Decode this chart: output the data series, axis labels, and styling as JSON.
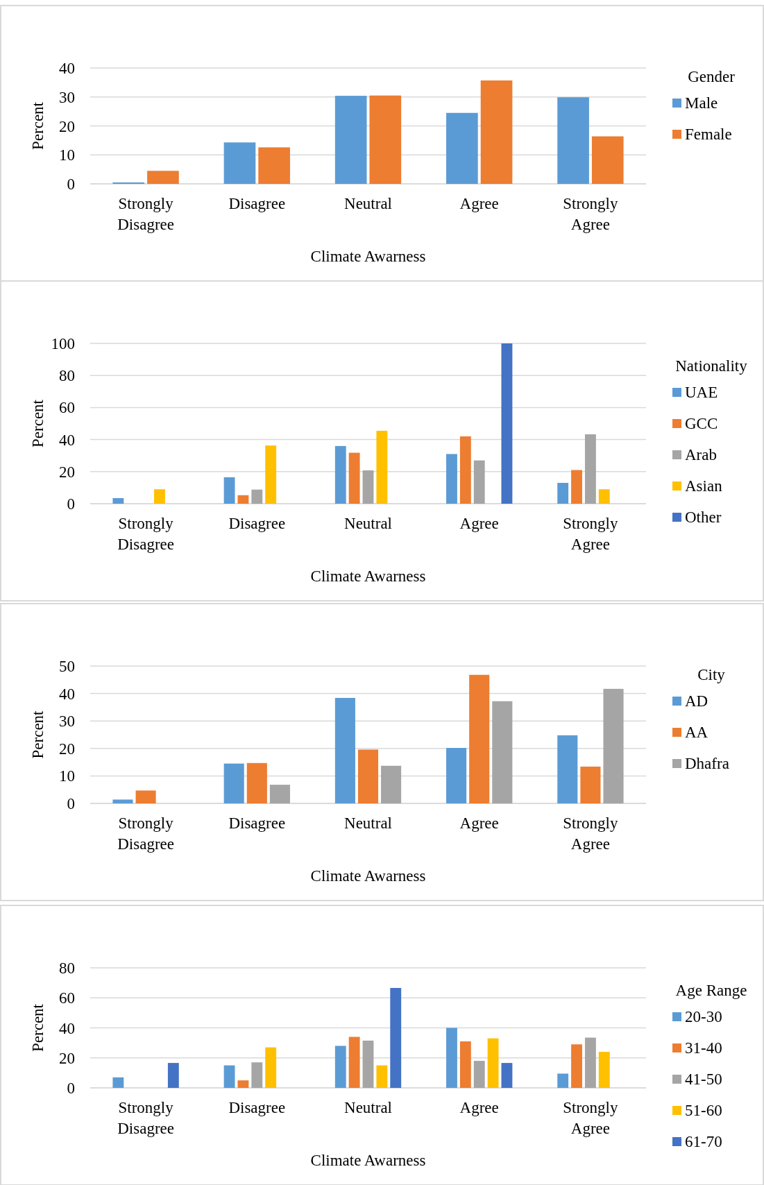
{
  "chart_data": [
    {
      "type": "bar",
      "xlabel": "Climate Awarness",
      "ylabel": "Percent",
      "legend_title": "Gender",
      "categories": [
        "Strongly Disagree",
        "Disagree",
        "Neutral",
        "Agree",
        "Strongly Agree"
      ],
      "ylim": [
        0,
        40
      ],
      "yticks": [
        0,
        10,
        20,
        30,
        40
      ],
      "grid": "y",
      "legend": "right",
      "series": [
        {
          "name": "Male",
          "color": "#5b9bd5",
          "values": [
            0.5,
            14.3,
            30.4,
            24.5,
            29.9
          ]
        },
        {
          "name": "Female",
          "color": "#ed7d31",
          "values": [
            4.5,
            12.6,
            30.5,
            35.7,
            16.4
          ]
        }
      ]
    },
    {
      "type": "bar",
      "xlabel": "Climate Awarness",
      "ylabel": "Percent",
      "legend_title": "Nationality",
      "categories": [
        "Strongly Disagree",
        "Disagree",
        "Neutral",
        "Agree",
        "Strongly Agree"
      ],
      "ylim": [
        0,
        100
      ],
      "yticks": [
        0,
        20,
        40,
        60,
        80,
        100
      ],
      "grid": "y",
      "legend": "right",
      "series": [
        {
          "name": "UAE",
          "color": "#5b9bd5",
          "values": [
            3.5,
            16.5,
            36,
            31,
            13
          ]
        },
        {
          "name": "GCC",
          "color": "#ed7d31",
          "values": [
            0,
            5.3,
            31.8,
            42,
            21
          ]
        },
        {
          "name": "Arab",
          "color": "#a5a5a5",
          "values": [
            0,
            8.8,
            20.8,
            27,
            43.3
          ]
        },
        {
          "name": "Asian",
          "color": "#ffc000",
          "values": [
            9,
            36.3,
            45.5,
            0,
            9
          ]
        },
        {
          "name": "Other",
          "color": "#4472c4",
          "values": [
            0,
            0,
            0,
            100,
            0
          ]
        }
      ]
    },
    {
      "type": "bar",
      "xlabel": "Climate Awarness",
      "ylabel": "Percent",
      "legend_title": "City",
      "categories": [
        "Strongly Disagree",
        "Disagree",
        "Neutral",
        "Agree",
        "Strongly Agree"
      ],
      "ylim": [
        0,
        50
      ],
      "yticks": [
        0,
        10,
        20,
        30,
        40,
        50
      ],
      "grid": "y",
      "legend": "right",
      "series": [
        {
          "name": "AD",
          "color": "#5b9bd5",
          "values": [
            1.4,
            14.5,
            38.4,
            20.2,
            24.8
          ]
        },
        {
          "name": "AA",
          "color": "#ed7d31",
          "values": [
            4.7,
            14.7,
            19.6,
            46.8,
            13.4
          ]
        },
        {
          "name": "Dhafra",
          "color": "#a5a5a5",
          "values": [
            0,
            6.8,
            13.7,
            37.2,
            41.7
          ]
        }
      ]
    },
    {
      "type": "bar",
      "xlabel": "Climate Awarness",
      "ylabel": "Percent",
      "legend_title": "Age Range",
      "categories": [
        "Strongly Disagree",
        "Disagree",
        "Neutral",
        "Agree",
        "Strongly Agree"
      ],
      "ylim": [
        0,
        80
      ],
      "yticks": [
        0,
        20,
        40,
        60,
        80
      ],
      "grid": "y",
      "legend": "right",
      "series": [
        {
          "name": "20-30",
          "color": "#5b9bd5",
          "values": [
            7,
            15,
            28,
            40,
            9.5
          ]
        },
        {
          "name": "31-40",
          "color": "#ed7d31",
          "values": [
            0,
            5,
            34,
            31,
            29
          ]
        },
        {
          "name": "41-50",
          "color": "#a5a5a5",
          "values": [
            0,
            17,
            31.5,
            18,
            33.5
          ]
        },
        {
          "name": "51-60",
          "color": "#ffc000",
          "values": [
            0,
            27,
            15,
            33,
            24
          ]
        },
        {
          "name": "61-70",
          "color": "#4472c4",
          "values": [
            16.6,
            0,
            66.6,
            16.6,
            0
          ]
        }
      ]
    }
  ]
}
